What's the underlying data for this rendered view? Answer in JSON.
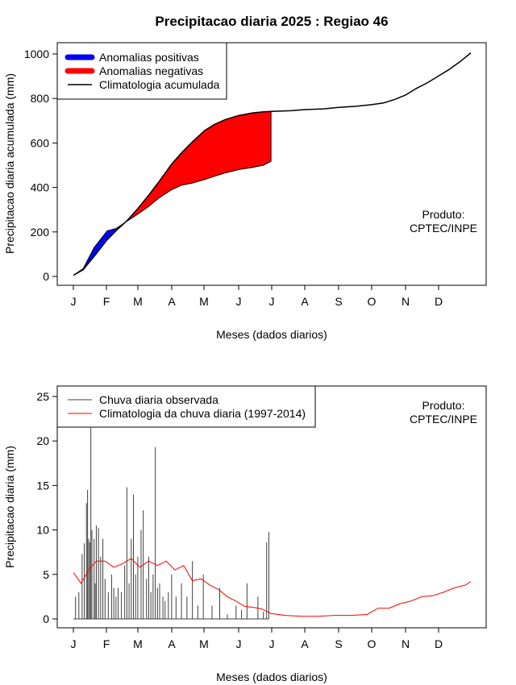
{
  "title": "Precipitacao diaria 2025 : Regiao 46",
  "credit_line1": "Produto:",
  "credit_line2": "CPTEC/INPE",
  "colors": {
    "positive": "#0000ff",
    "negative": "#ff0000",
    "climatology": "#000000",
    "observed": "#404040",
    "daily_climatology": "#ff0000"
  },
  "chart_data": [
    {
      "type": "area",
      "xlabel": "Meses (dados diarios)",
      "ylabel": "Precipitacao diaria acumulada (mm)",
      "x_ticks": [
        "J",
        "F",
        "M",
        "A",
        "M",
        "J",
        "J",
        "A",
        "S",
        "O",
        "N",
        "D"
      ],
      "xlim": [
        1,
        365
      ],
      "ylim": [
        0,
        1000
      ],
      "y_ticks": [
        0,
        200,
        400,
        600,
        800,
        1000
      ],
      "legend_position": "top-left",
      "legend": [
        "Anomalias positivas",
        "Anomalias negativas",
        "Climatologia acumulada"
      ],
      "series": [
        {
          "name": "Climatologia acumulada",
          "x": [
            1,
            10,
            20,
            32,
            40,
            50,
            60,
            70,
            80,
            91,
            100,
            110,
            121,
            130,
            140,
            152,
            165,
            175,
            182,
            200,
            213,
            230,
            244,
            260,
            274,
            285,
            295,
            305,
            315,
            325,
            335,
            345,
            355,
            365
          ],
          "values": [
            5,
            30,
            90,
            165,
            205,
            250,
            305,
            365,
            430,
            505,
            555,
            605,
            655,
            683,
            705,
            723,
            735,
            740,
            742,
            745,
            750,
            753,
            760,
            765,
            772,
            780,
            795,
            815,
            845,
            870,
            900,
            930,
            965,
            1005
          ]
        },
        {
          "name": "Observada acumulada",
          "x": [
            1,
            10,
            20,
            32,
            40,
            50,
            60,
            70,
            80,
            91,
            100,
            110,
            121,
            130,
            140,
            152,
            165,
            175,
            182
          ],
          "values": [
            5,
            35,
            130,
            205,
            215,
            248,
            280,
            315,
            355,
            390,
            410,
            420,
            435,
            450,
            465,
            480,
            490,
            500,
            518
          ]
        }
      ]
    },
    {
      "type": "line",
      "xlabel": "Meses (dados diarios)",
      "ylabel": "Precipitacao diaria (mm)",
      "x_ticks": [
        "J",
        "F",
        "M",
        "A",
        "M",
        "J",
        "J",
        "A",
        "S",
        "O",
        "N",
        "D"
      ],
      "xlim": [
        1,
        365
      ],
      "ylim": [
        0,
        25
      ],
      "y_ticks": [
        0,
        5,
        10,
        15,
        20,
        25
      ],
      "legend_position": "top-left",
      "legend": [
        "Chuva diaria observada",
        "Climatologia da chuva diaria (1997-2014)"
      ],
      "series": [
        {
          "name": "Chuva diaria observada",
          "x": [
            3,
            6,
            9,
            11,
            13,
            14,
            15,
            16,
            17,
            18,
            20,
            21,
            22,
            24,
            26,
            28,
            30,
            33,
            36,
            38,
            40,
            42,
            45,
            48,
            50,
            52,
            54,
            56,
            58,
            60,
            63,
            65,
            68,
            70,
            72,
            74,
            76,
            78,
            80,
            83,
            85,
            88,
            91,
            95,
            100,
            105,
            110,
            115,
            120,
            128,
            135,
            142,
            150,
            155,
            160,
            170,
            175,
            178,
            180
          ],
          "values": [
            2.5,
            3,
            7.3,
            8.5,
            13,
            14.5,
            9,
            8.6,
            21.5,
            10,
            9,
            4,
            10.5,
            10.2,
            7,
            9,
            4.5,
            3,
            5,
            3.5,
            2.5,
            3.5,
            3,
            6,
            14.8,
            4,
            9,
            14,
            5,
            7,
            10,
            12.2,
            4.5,
            7,
            3,
            5,
            19.3,
            3.5,
            4,
            2.5,
            2,
            3,
            5,
            2.5,
            4,
            2.5,
            6.5,
            1.5,
            5,
            1.5,
            3.5,
            0.5,
            1.5,
            1,
            4,
            2.5,
            0.8,
            8.6,
            9.8
          ]
        },
        {
          "name": "Climatologia da chuva diaria (1997-2014)",
          "x": [
            1,
            8,
            15,
            22,
            30,
            38,
            46,
            54,
            62,
            70,
            78,
            86,
            94,
            102,
            110,
            118,
            126,
            134,
            142,
            150,
            158,
            166,
            174,
            182,
            195,
            210,
            225,
            240,
            255,
            270,
            280,
            290,
            300,
            310,
            320,
            330,
            340,
            350,
            360,
            365
          ],
          "values": [
            5.2,
            4,
            5.5,
            6.5,
            6.5,
            5.8,
            6.2,
            6.8,
            5.8,
            6.5,
            6,
            6.5,
            5.5,
            6,
            4.3,
            4.5,
            3.8,
            3.3,
            2.5,
            2,
            1.4,
            1.3,
            1.1,
            0.6,
            0.4,
            0.3,
            0.3,
            0.4,
            0.4,
            0.5,
            1.2,
            1.2,
            1.7,
            2,
            2.5,
            2.6,
            3,
            3.5,
            3.8,
            4.2
          ]
        }
      ]
    }
  ]
}
